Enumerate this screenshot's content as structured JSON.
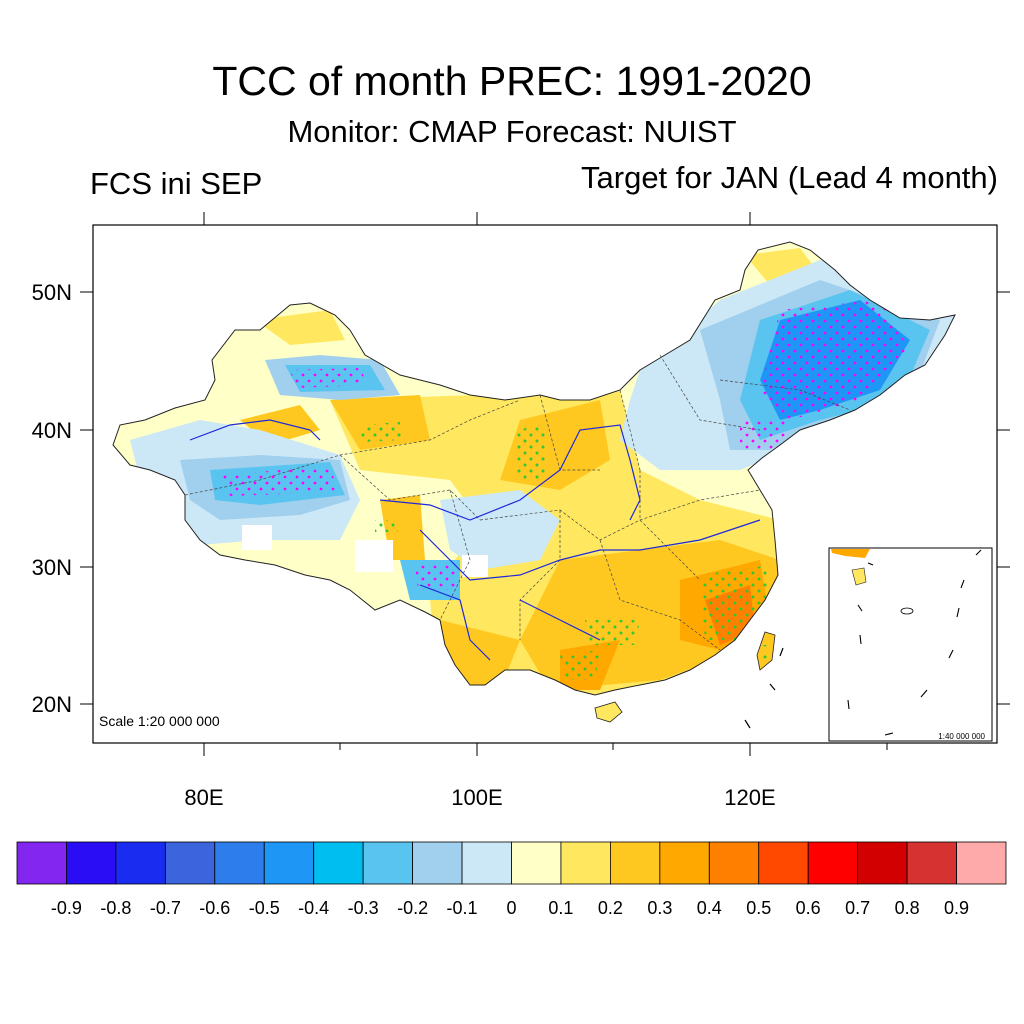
{
  "title": "TCC of month PREC: 1991-2020",
  "subtitle": "Monitor: CMAP   Forecast: NUIST",
  "left_label": "FCS ini SEP",
  "right_label": "Target for JAN (Lead 4 month)",
  "scale_main": "Scale 1:20 000 000",
  "scale_inset": "1:40 000 000",
  "axes": {
    "lon_ticks": [
      "80E",
      "100E",
      "120E"
    ],
    "lat_ticks": [
      "50N",
      "40N",
      "30N",
      "20N"
    ],
    "lon_range": [
      72,
      138
    ],
    "lat_range": [
      17,
      55
    ]
  },
  "colorbar": {
    "labels": [
      "-0.9",
      "-0.8",
      "-0.7",
      "-0.6",
      "-0.5",
      "-0.4",
      "-0.3",
      "-0.2",
      "-0.1",
      "0",
      "0.1",
      "0.2",
      "0.3",
      "0.4",
      "0.5",
      "0.6",
      "0.7",
      "0.8",
      "0.9"
    ],
    "colors": [
      "#8226f0",
      "#2a0cf5",
      "#1a2cf0",
      "#3c64dc",
      "#2d7ded",
      "#1e96f5",
      "#00bef0",
      "#5ac4f0",
      "#a0d0ee",
      "#cce8f6",
      "#ffffc8",
      "#ffe860",
      "#ffc820",
      "#ffa800",
      "#ff8000",
      "#ff4800",
      "#ff0000",
      "#d20000",
      "#d63232",
      "#ffaaaa"
    ]
  },
  "colors": {
    "frame": "#000000",
    "river": "#1e28dc",
    "dots_negative": "#ff00ff",
    "dots_positive": "#32c832"
  }
}
